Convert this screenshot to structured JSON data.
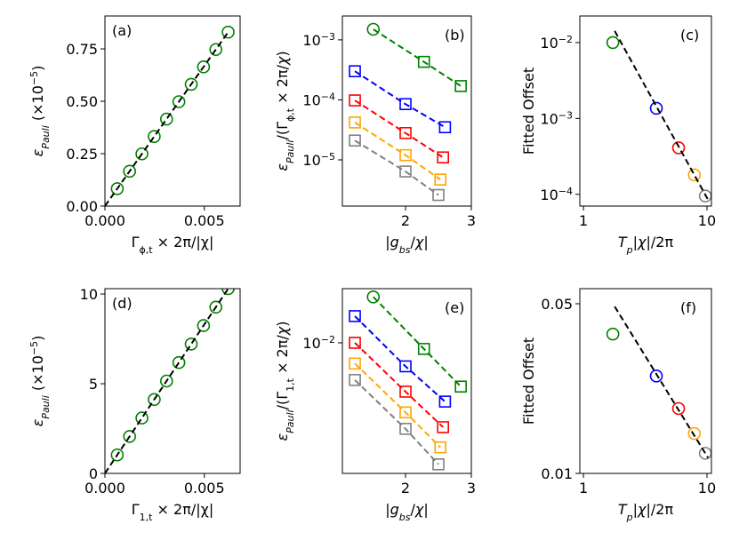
{
  "chart_data": [
    {
      "type": "scatter",
      "annotation": "(a)",
      "xlabel": [
        "Γ",
        "ϕ,t",
        " × 2π/|χ|"
      ],
      "ylabel": [
        "ε",
        "Pauli",
        " (×10",
        "−5",
        ")"
      ],
      "xlim": [
        0,
        0.0068
      ],
      "xticks": [
        {
          "value": 0,
          "label": "0.000"
        },
        0.005
      ],
      "ylim": [
        0,
        0.907
      ],
      "yticks": [
        {
          "value": 0,
          "label": "0.00"
        },
        0.25,
        {
          "value": 0.5,
          "label": "0.50"
        },
        0.75
      ],
      "series": [
        {
          "color": "#008000",
          "marker": "o",
          "linestyle": "none",
          "x": [
            0.00062,
            0.00124,
            0.00186,
            0.00248,
            0.0031,
            0.00372,
            0.00434,
            0.00496,
            0.00558,
            0.0062
          ],
          "values": [
            0.083,
            0.166,
            0.249,
            0.332,
            0.415,
            0.498,
            0.581,
            0.664,
            0.747,
            0.83
          ]
        },
        {
          "color": "#000000",
          "marker": "none",
          "linestyle": "dashed",
          "x": [
            0,
            0.0062
          ],
          "values": [
            0,
            0.83
          ]
        }
      ]
    },
    {
      "type": "line",
      "annotation": "(b)",
      "xlabel": [
        "|",
        "g",
        "bs",
        "/",
        "χ",
        "|"
      ],
      "ylabel": [
        "ε",
        "Pauli",
        "/(Γ",
        "ϕ,t",
        " × 2π/",
        "χ",
        ")"
      ],
      "xlim": [
        1.04,
        3
      ],
      "xticks": [
        2,
        3
      ],
      "ylog": true,
      "ylim": [
        1.7e-06,
        0.0025
      ],
      "yticks": [
        {
          "value": 0.001,
          "label": [
            "10",
            "−3"
          ]
        },
        {
          "value": 0.0001,
          "label": [
            "10",
            "−4"
          ]
        },
        {
          "value": 1e-05,
          "label": [
            "10",
            "−5"
          ]
        }
      ],
      "series": [
        {
          "color": "#008000",
          "markers": [
            "o",
            "s",
            "s"
          ],
          "linestyle": "dashed",
          "x": [
            1.51,
            2.28,
            2.84
          ],
          "values": [
            0.0015,
            0.00043,
            0.00017
          ]
        },
        {
          "color": "#0000ff",
          "markers": [
            "s",
            "s",
            "s"
          ],
          "linestyle": "dashed",
          "x": [
            1.23,
            2.0,
            2.6
          ],
          "values": [
            0.0003,
            8.5e-05,
            3.5e-05
          ]
        },
        {
          "color": "#ff0000",
          "markers": [
            "s",
            "s",
            "s"
          ],
          "linestyle": "dashed",
          "x": [
            1.23,
            2.0,
            2.57
          ],
          "values": [
            9.8e-05,
            2.8e-05,
            1.1e-05
          ]
        },
        {
          "color": "#ffa500",
          "markers": [
            "s",
            "s",
            "s"
          ],
          "linestyle": "dashed",
          "x": [
            1.23,
            2.0,
            2.53
          ],
          "values": [
            4.2e-05,
            1.2e-05,
            4.7e-06
          ]
        },
        {
          "color": "#808080",
          "markers": [
            "s",
            "s",
            "s"
          ],
          "linestyle": "dashed",
          "x": [
            1.23,
            2.0,
            2.5
          ],
          "values": [
            2.1e-05,
            6.4e-06,
            2.6e-06
          ]
        }
      ]
    },
    {
      "type": "scatter",
      "annotation": "(c)",
      "xlabel": [
        "T",
        "p",
        "|",
        "χ",
        "|/2π"
      ],
      "ylabel": [
        "Fitted Offset"
      ],
      "xlog": true,
      "xlim": [
        0.934,
        10.87
      ],
      "xticks": [
        1,
        10
      ],
      "ylog": true,
      "ylim": [
        7e-05,
        0.0224
      ],
      "yticks": [
        {
          "value": 0.01,
          "label": [
            "10",
            "−2"
          ]
        },
        {
          "value": 0.001,
          "label": [
            "10",
            "−3"
          ]
        },
        {
          "value": 0.0001,
          "label": [
            "10",
            "−4"
          ]
        }
      ],
      "series": [
        {
          "colors": [
            "#008000",
            "#0000ff",
            "#ff0000",
            "#ffa500",
            "#808080"
          ],
          "marker": "o",
          "linestyle": "none",
          "x": [
            1.73,
            3.89,
            5.89,
            7.9,
            9.7
          ],
          "values": [
            0.01,
            0.00136,
            0.00041,
            0.00018,
            9.5e-05
          ]
        },
        {
          "color": "#000000",
          "marker": "none",
          "linestyle": "dashed",
          "x": [
            1.79,
            10.2
          ],
          "values": [
            0.0142,
            8.5e-05
          ]
        }
      ]
    },
    {
      "type": "scatter",
      "annotation": "(d)",
      "xlabel": [
        "Γ",
        "1,t",
        " × 2π/|χ|"
      ],
      "ylabel": [
        "ε",
        "Pauli",
        " (×10",
        "−5",
        ")"
      ],
      "xlim": [
        0,
        0.0068
      ],
      "xticks": [
        {
          "value": 0,
          "label": "0.000"
        },
        0.005
      ],
      "ylim": [
        0,
        10.3
      ],
      "yticks": [
        0,
        5,
        10
      ],
      "series": [
        {
          "color": "#008000",
          "marker": "o",
          "linestyle": "none",
          "x": [
            0.00062,
            0.00124,
            0.00186,
            0.00248,
            0.0031,
            0.00372,
            0.00434,
            0.00496,
            0.00558,
            0.0062
          ],
          "values": [
            1.03,
            2.06,
            3.09,
            4.12,
            5.15,
            6.18,
            7.21,
            8.24,
            9.27,
            10.3
          ]
        },
        {
          "color": "#000000",
          "marker": "none",
          "linestyle": "dashed",
          "x": [
            0,
            0.0062
          ],
          "values": [
            0,
            10.3
          ]
        }
      ]
    },
    {
      "type": "line",
      "annotation": "(e)",
      "xlabel": [
        "|",
        "g",
        "bs",
        "/",
        "χ",
        "|"
      ],
      "ylabel": [
        "ε",
        "Pauli",
        "/(Γ",
        "1,t",
        " × 2π/",
        "χ",
        ")"
      ],
      "xlim": [
        1.04,
        3
      ],
      "xticks": [
        2,
        3
      ],
      "ylog": true,
      "ylim": [
        0.0004,
        0.038
      ],
      "yticks": [
        {
          "value": 0.01,
          "label": [
            "10",
            "−2"
          ]
        }
      ],
      "series": [
        {
          "color": "#008000",
          "markers": [
            "o",
            "s",
            "s"
          ],
          "linestyle": "dashed",
          "x": [
            1.51,
            2.28,
            2.84
          ],
          "values": [
            0.031,
            0.0086,
            0.0034
          ]
        },
        {
          "color": "#0000ff",
          "markers": [
            "s",
            "s",
            "s"
          ],
          "linestyle": "dashed",
          "x": [
            1.23,
            2.0,
            2.6
          ],
          "values": [
            0.0193,
            0.0056,
            0.00235
          ]
        },
        {
          "color": "#ff0000",
          "markers": [
            "s",
            "s",
            "s"
          ],
          "linestyle": "dashed",
          "x": [
            1.23,
            2.0,
            2.57
          ],
          "values": [
            0.01,
            0.003,
            0.00125
          ]
        },
        {
          "color": "#ffa500",
          "markers": [
            "s",
            "s",
            "s"
          ],
          "linestyle": "dashed",
          "x": [
            1.23,
            2.0,
            2.53
          ],
          "values": [
            0.006,
            0.0018,
            0.00076
          ]
        },
        {
          "color": "#808080",
          "markers": [
            "s",
            "s",
            "s"
          ],
          "linestyle": "dashed",
          "x": [
            1.23,
            2.0,
            2.5
          ],
          "values": [
            0.004,
            0.0012,
            0.0005
          ]
        }
      ]
    },
    {
      "type": "scatter",
      "annotation": "(f)",
      "xlabel": [
        "T",
        "p",
        "|",
        "χ",
        "|/2π"
      ],
      "ylabel": [
        "Fitted Offset"
      ],
      "xlog": true,
      "xlim": [
        0.934,
        10.87
      ],
      "xticks": [
        1,
        10
      ],
      "ylog": true,
      "ylim": [
        0.01,
        0.0577
      ],
      "yticks": [
        0.05,
        0.01
      ],
      "series": [
        {
          "colors": [
            "#008000",
            "#0000ff",
            "#ff0000",
            "#ffa500",
            "#808080"
          ],
          "marker": "o",
          "linestyle": "none",
          "x": [
            1.73,
            3.89,
            5.89,
            7.9,
            9.7
          ],
          "values": [
            0.0375,
            0.0252,
            0.0185,
            0.0146,
            0.0121
          ]
        },
        {
          "color": "#000000",
          "marker": "none",
          "linestyle": "dashed",
          "x": [
            1.79,
            10.2
          ],
          "values": [
            0.0487,
            0.0116
          ]
        }
      ]
    }
  ]
}
